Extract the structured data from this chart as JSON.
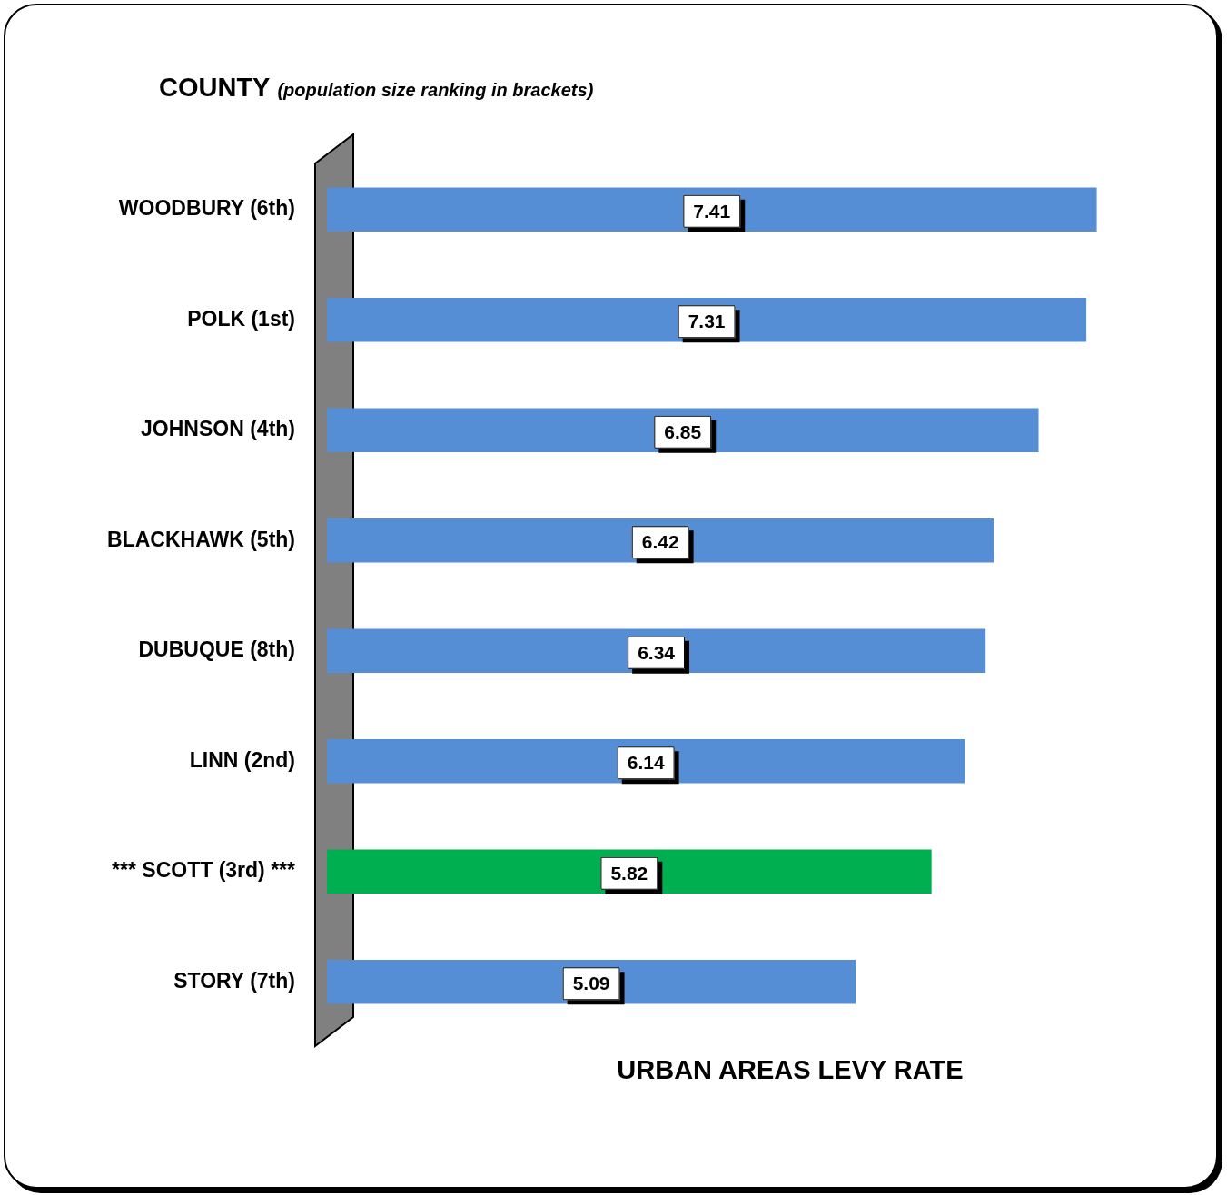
{
  "chart_data": {
    "type": "bar",
    "orientation": "horizontal",
    "title": "COUNTY",
    "subtitle": "(population size ranking in brackets)",
    "xlabel": "URBAN AREAS LEVY RATE",
    "categories": [
      "WOODBURY (6th)",
      "POLK (1st)",
      "JOHNSON (4th)",
      "BLACKHAWK (5th)",
      "DUBUQUE (8th)",
      "LINN (2nd)",
      "*** SCOTT (3rd) ***",
      "STORY (7th)"
    ],
    "values": [
      7.41,
      7.31,
      6.85,
      6.42,
      6.34,
      6.14,
      5.82,
      5.09
    ],
    "colors": [
      "#558ed5",
      "#558ed5",
      "#558ed5",
      "#558ed5",
      "#558ed5",
      "#558ed5",
      "#00b050",
      "#558ed5"
    ],
    "tick_labels": "y",
    "data_labels": true
  }
}
